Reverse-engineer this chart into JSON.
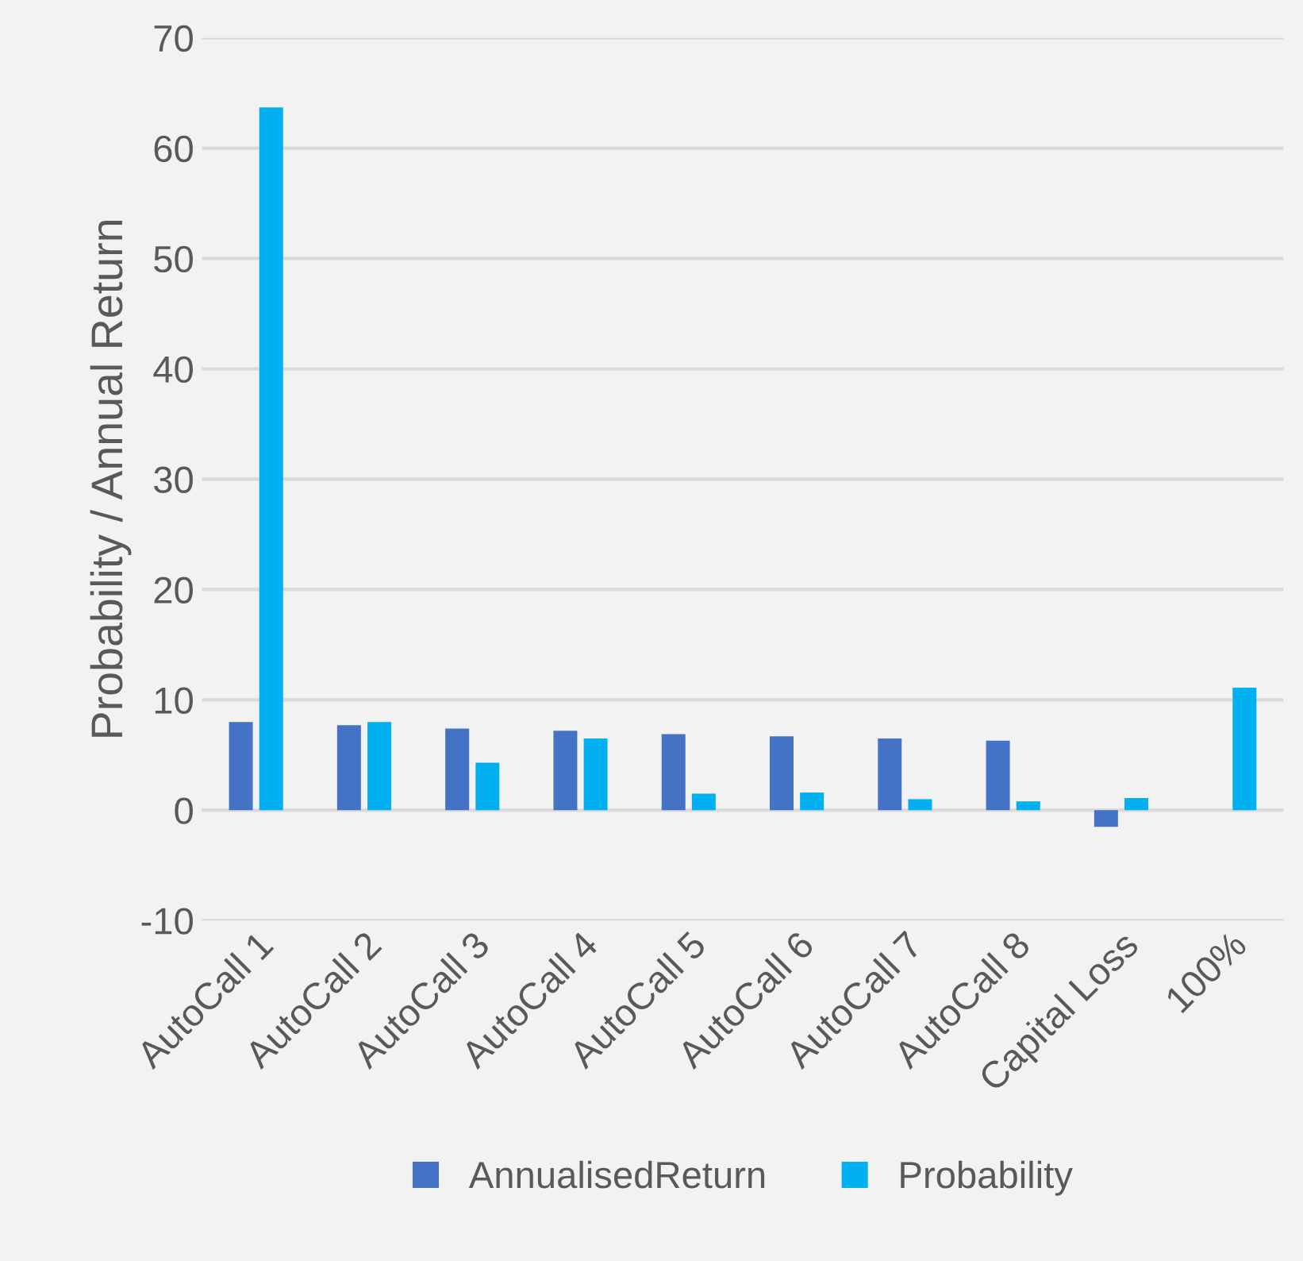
{
  "chart_data": {
    "type": "bar",
    "ylabel": "Probability / Annual Return",
    "categories": [
      "AutoCall 1",
      "AutoCall 2",
      "AutoCall 3",
      "AutoCall 4",
      "AutoCall 5",
      "AutoCall 6",
      "AutoCall 7",
      "AutoCall 8",
      "Capital Loss",
      "100%"
    ],
    "series": [
      {
        "name": "AnnualisedReturn",
        "color": "#4472c4",
        "values": [
          8.0,
          7.7,
          7.4,
          7.2,
          6.9,
          6.7,
          6.5,
          6.3,
          -1.5,
          null
        ]
      },
      {
        "name": "Probability",
        "color": "#00b0f0",
        "values": [
          63.7,
          8.0,
          4.3,
          6.5,
          1.5,
          1.6,
          1.0,
          0.8,
          1.1,
          11.1
        ]
      }
    ],
    "ylim": [
      -10,
      70
    ],
    "yticks": [
      -10,
      0,
      10,
      20,
      30,
      40,
      50,
      60,
      70
    ],
    "grid": "y",
    "legend": "bottom"
  }
}
